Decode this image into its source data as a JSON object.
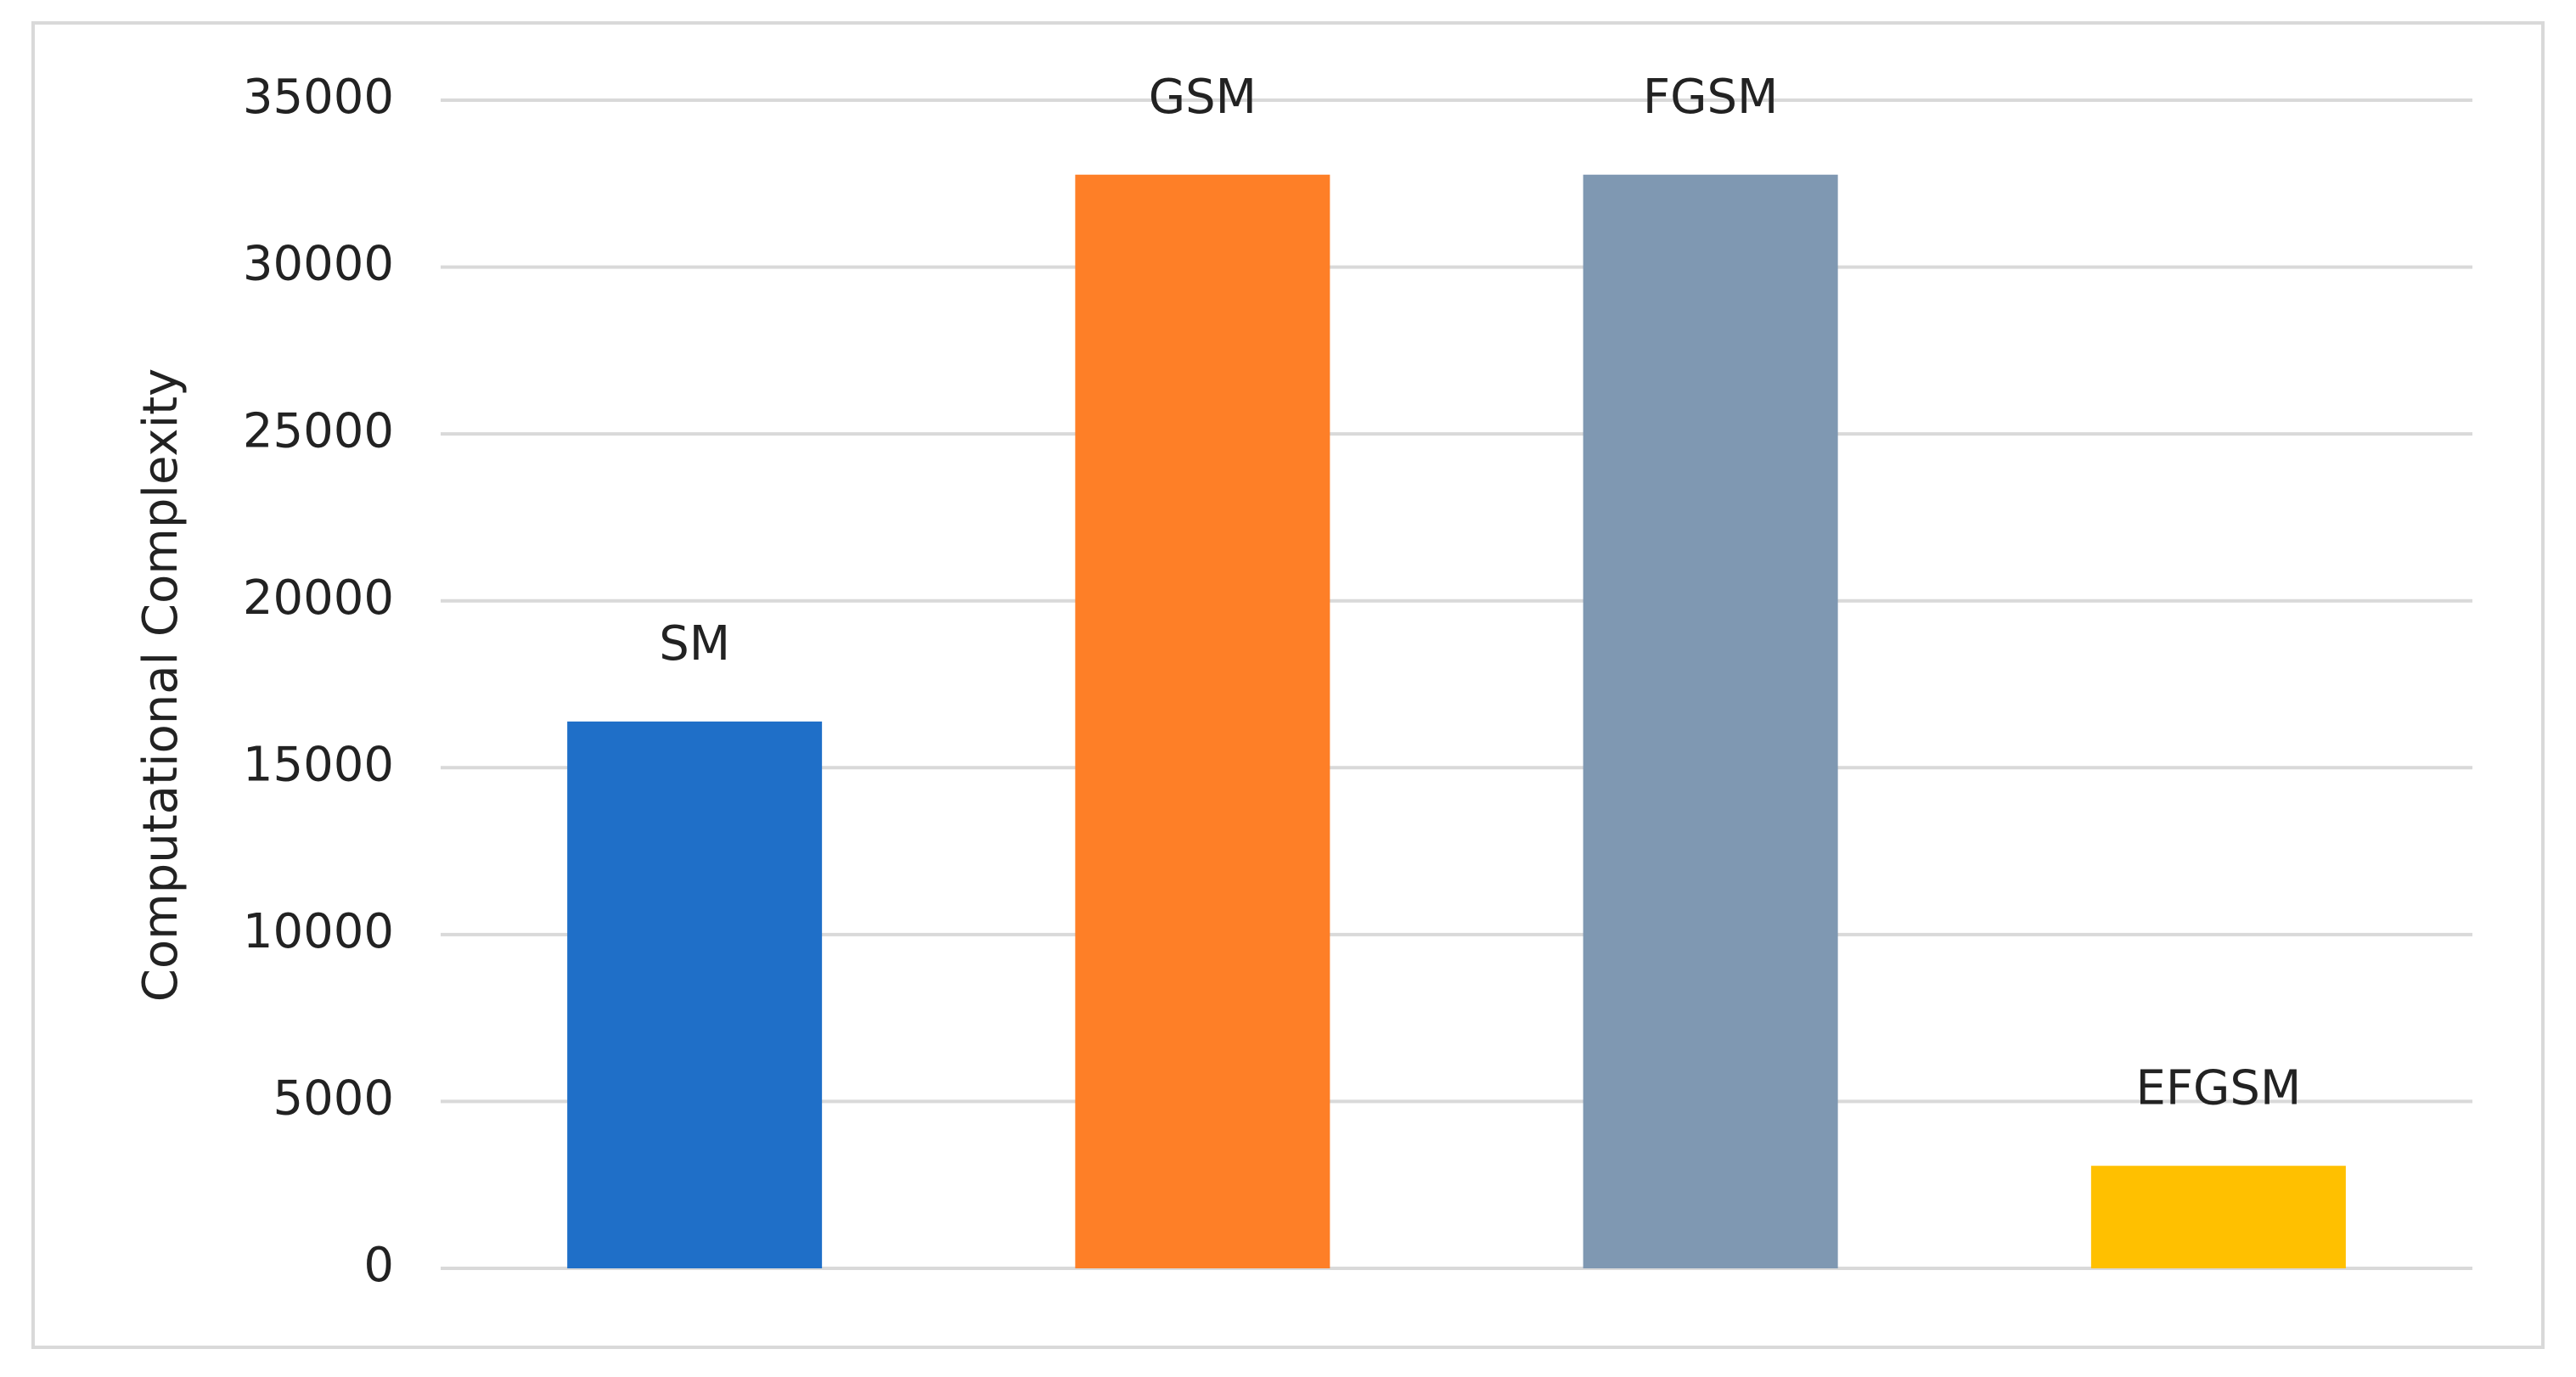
{
  "chart_data": {
    "type": "bar",
    "y_label": "Computational Complexity",
    "categories": [
      "SM",
      "GSM",
      "FGSM",
      "EFGSM"
    ],
    "values": [
      16384,
      32768,
      32768,
      3072
    ],
    "colors": [
      "#1f6fc8",
      "#fe7f27",
      "#7f98b2",
      "#ffc000"
    ],
    "ylim": [
      0,
      35000
    ],
    "yticks": [
      0,
      5000,
      10000,
      15000,
      20000,
      25000,
      30000,
      35000
    ],
    "grid": true
  }
}
